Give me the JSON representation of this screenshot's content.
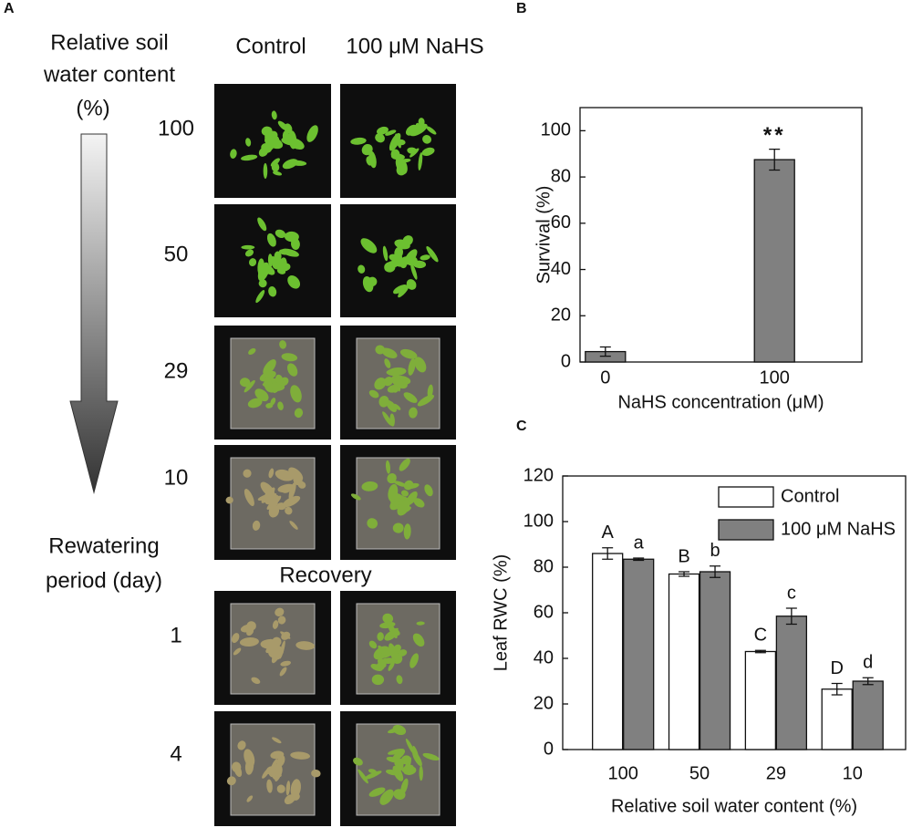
{
  "panel_a": {
    "label": "A",
    "axis_title_lines": [
      "Relative soil",
      "water content",
      "(%)"
    ],
    "columns": [
      "Control",
      "100 μM NaHS"
    ],
    "rows": [
      "100",
      "50",
      "29",
      "10"
    ],
    "rewatering_title_lines": [
      "Rewatering",
      "period (day)"
    ],
    "recovery_title": "Recovery",
    "recovery_rows": [
      "1",
      "4"
    ]
  },
  "chart_data": [
    {
      "type": "bar",
      "label": "B",
      "x_label": "NaHS concentration (μM)",
      "y_label": "Survival (%)",
      "categories": [
        "0",
        "100"
      ],
      "values": [
        4.5,
        87.5
      ],
      "errors": [
        2,
        4.5
      ],
      "significance": [
        null,
        "**"
      ],
      "color": "#808080",
      "ylim": [
        0,
        110
      ],
      "yticks": [
        0,
        20,
        40,
        60,
        80,
        100
      ]
    },
    {
      "type": "bar",
      "label": "C",
      "x_label": "Relative soil water content (%)",
      "y_label": "Leaf RWC (%)",
      "categories": [
        "100",
        "50",
        "29",
        "10"
      ],
      "series": [
        {
          "name": "Control",
          "color": "#ffffff",
          "values": [
            86,
            77,
            43,
            26.5
          ],
          "errors": [
            2.5,
            1,
            0.5,
            2.5
          ],
          "letters": [
            "A",
            "B",
            "C",
            "D"
          ]
        },
        {
          "name": "100 μM NaHS",
          "color": "#808080",
          "values": [
            83.5,
            78,
            58.5,
            30
          ],
          "errors": [
            0.5,
            2.5,
            3.5,
            1.5
          ],
          "letters": [
            "a",
            "b",
            "c",
            "d"
          ]
        }
      ],
      "ylim": [
        0,
        120
      ],
      "yticks": [
        0,
        20,
        40,
        60,
        80,
        100,
        120
      ],
      "legend": "upper right"
    }
  ]
}
